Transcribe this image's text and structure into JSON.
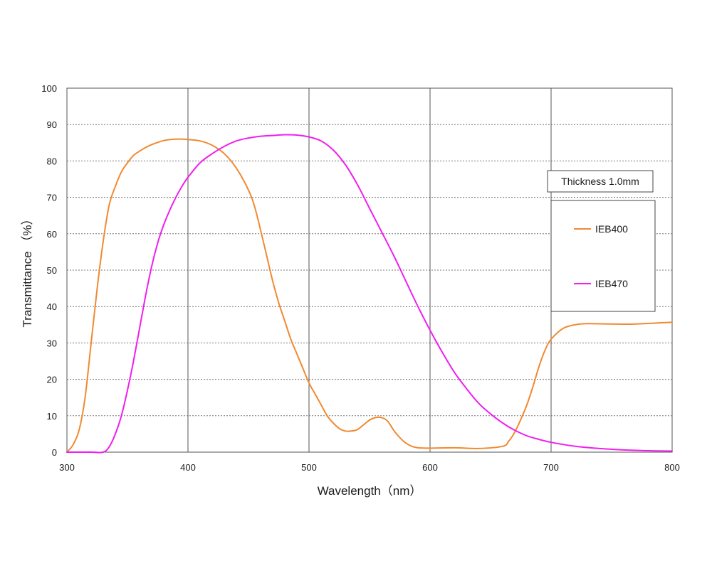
{
  "chart_data": {
    "type": "line",
    "xlabel": "Wavelength（nm）",
    "ylabel": "Transmittance （%）",
    "xlim": [
      300,
      800
    ],
    "ylim": [
      0,
      100
    ],
    "xticks": [
      300,
      400,
      500,
      600,
      700,
      800
    ],
    "yticks": [
      0,
      10,
      20,
      30,
      40,
      50,
      60,
      70,
      80,
      90,
      100
    ],
    "grid": true,
    "legend_position": "right",
    "annotation": "Thickness  1.0mm",
    "series": [
      {
        "name": "IEB400",
        "color": "#f08a30",
        "x": [
          300,
          305,
          310,
          315,
          320,
          325,
          330,
          335,
          340,
          345,
          350,
          355,
          360,
          365,
          370,
          375,
          380,
          385,
          390,
          395,
          400,
          410,
          420,
          430,
          440,
          450,
          455,
          460,
          465,
          470,
          475,
          480,
          485,
          490,
          495,
          500,
          505,
          510,
          515,
          520,
          525,
          530,
          535,
          540,
          545,
          550,
          555,
          560,
          565,
          570,
          575,
          580,
          585,
          590,
          600,
          620,
          640,
          660,
          665,
          670,
          675,
          680,
          685,
          690,
          695,
          700,
          710,
          720,
          730,
          750,
          770,
          800
        ],
        "y": [
          0,
          2,
          6,
          15,
          30,
          45,
          58,
          68,
          73,
          77,
          79.5,
          81.5,
          82.7,
          83.7,
          84.5,
          85.1,
          85.6,
          85.9,
          86.0,
          86.0,
          85.9,
          85.5,
          84.3,
          82.0,
          78.0,
          72.0,
          67.5,
          61.0,
          54.0,
          47.0,
          41.0,
          36.0,
          31.0,
          27.0,
          23.0,
          19.0,
          16.0,
          13.0,
          10.0,
          8.0,
          6.5,
          5.8,
          5.8,
          6.2,
          7.5,
          8.8,
          9.5,
          9.5,
          8.5,
          6.0,
          4.0,
          2.5,
          1.6,
          1.2,
          1.1,
          1.2,
          1.0,
          1.6,
          3.0,
          5.5,
          9.0,
          13.0,
          18.0,
          23.5,
          28.0,
          31.0,
          34.0,
          35.0,
          35.3,
          35.2,
          35.2,
          35.7
        ]
      },
      {
        "name": "IEB470",
        "color": "#f01ef0",
        "x": [
          300,
          320,
          330,
          335,
          340,
          345,
          350,
          355,
          360,
          365,
          370,
          375,
          380,
          385,
          390,
          395,
          400,
          410,
          420,
          430,
          440,
          450,
          460,
          470,
          480,
          490,
          500,
          510,
          520,
          530,
          540,
          550,
          560,
          570,
          580,
          590,
          600,
          610,
          620,
          630,
          640,
          650,
          660,
          670,
          680,
          690,
          700,
          720,
          740,
          760,
          780,
          800
        ],
        "y": [
          0,
          0,
          0,
          1.5,
          5,
          10,
          17,
          25,
          34,
          43,
          51,
          57.5,
          62.5,
          66.5,
          70,
          73,
          75.5,
          79.5,
          82.0,
          84.0,
          85.5,
          86.3,
          86.8,
          87.0,
          87.2,
          87.1,
          86.6,
          85.5,
          83.0,
          79.0,
          73.5,
          67.0,
          60.5,
          54.0,
          47.0,
          40.0,
          33.5,
          27.5,
          22.0,
          17.5,
          13.5,
          10.5,
          8.0,
          6.0,
          4.5,
          3.5,
          2.7,
          1.6,
          1.0,
          0.6,
          0.4,
          0.3
        ]
      }
    ]
  }
}
